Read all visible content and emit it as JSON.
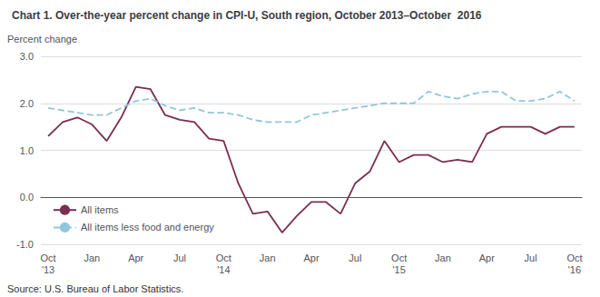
{
  "chart_data": {
    "type": "line",
    "title": "Chart 1. Over-the-year percent change in CPI-U, South region, October 2013–October  2016",
    "ylabel": "Percent change",
    "annotations": [
      "Source: U.S. Bureau of Labor Statistics."
    ],
    "categories": [
      "Oct\n'13",
      null,
      null,
      "Jan",
      null,
      null,
      "Apr",
      null,
      null,
      "Jul",
      null,
      null,
      "Oct\n'14",
      null,
      null,
      "Jan",
      null,
      null,
      "Apr",
      null,
      null,
      "Jul",
      null,
      null,
      "Oct\n'15",
      null,
      null,
      "Jan",
      null,
      null,
      "Apr",
      null,
      null,
      "Jul",
      null,
      null,
      "Oct\n'16"
    ],
    "series": [
      {
        "name": "All items",
        "color": "#7b2d52",
        "line_style": "solid",
        "values": [
          1.3,
          1.6,
          1.7,
          1.55,
          1.2,
          1.7,
          2.35,
          2.3,
          1.75,
          1.65,
          1.6,
          1.25,
          1.2,
          0.3,
          -0.35,
          -0.3,
          -0.75,
          -0.4,
          -0.1,
          -0.1,
          -0.35,
          0.3,
          0.55,
          1.2,
          0.75,
          0.9,
          0.9,
          0.75,
          0.8,
          0.75,
          1.35,
          1.5,
          1.5,
          1.5,
          1.35,
          1.5,
          1.5
        ]
      },
      {
        "name": "All items less food and energy",
        "color": "#92c5e0",
        "line_style": "dashed",
        "values": [
          1.9,
          1.85,
          1.8,
          1.75,
          1.75,
          1.9,
          2.05,
          2.1,
          1.95,
          1.85,
          1.9,
          1.8,
          1.8,
          1.75,
          1.65,
          1.6,
          1.6,
          1.6,
          1.75,
          1.8,
          1.85,
          1.9,
          1.95,
          2.0,
          2.0,
          2.0,
          2.25,
          2.15,
          2.1,
          2.2,
          2.25,
          2.25,
          2.05,
          2.05,
          2.1,
          2.25,
          2.05
        ]
      }
    ],
    "ylim": [
      -1.0,
      3.0
    ],
    "yticks": [
      {
        "value": -1.0,
        "label": "-1.0"
      },
      {
        "value": 0.0,
        "label": "0.0"
      },
      {
        "value": 1.0,
        "label": "1.0"
      },
      {
        "value": 2.0,
        "label": "2.0"
      },
      {
        "value": 3.0,
        "label": "3.0"
      }
    ],
    "grid": true,
    "legend": "lower left"
  }
}
